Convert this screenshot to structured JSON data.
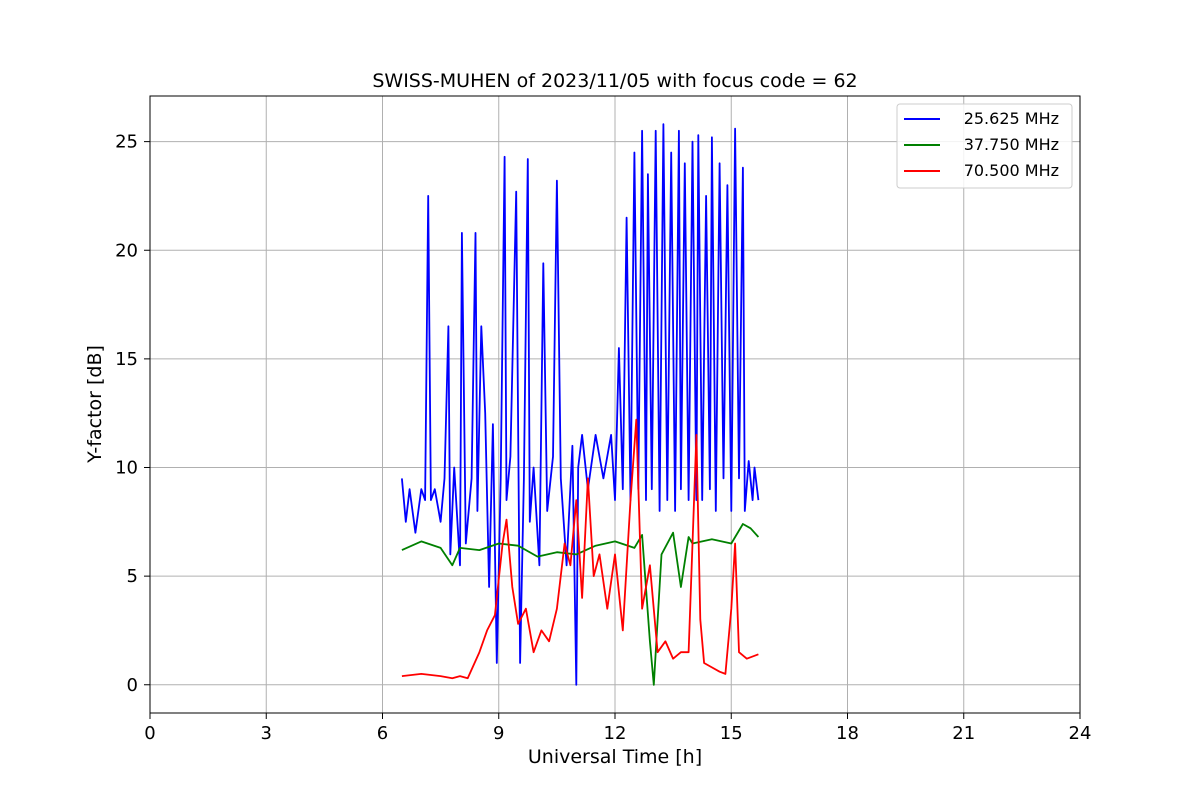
{
  "chart_data": {
    "type": "line",
    "title": "SWISS-MUHEN of 2023/11/05 with focus code = 62",
    "xlabel": "Universal Time [h]",
    "ylabel": "Y-factor [dB]",
    "xlim": [
      0,
      24
    ],
    "ylim": [
      -1.3,
      27.1
    ],
    "xticks": [
      0,
      3,
      6,
      9,
      12,
      15,
      18,
      21,
      24
    ],
    "yticks": [
      0,
      5,
      10,
      15,
      20,
      25
    ],
    "grid": true,
    "legend_position": "top-right",
    "series": [
      {
        "name": "25.625 MHz",
        "color": "#0000ff",
        "x": [
          6.5,
          6.6,
          6.7,
          6.85,
          7.0,
          7.1,
          7.18,
          7.25,
          7.35,
          7.5,
          7.6,
          7.7,
          7.75,
          7.85,
          8.0,
          8.05,
          8.15,
          8.3,
          8.4,
          8.45,
          8.55,
          8.65,
          8.75,
          8.85,
          8.95,
          9.05,
          9.15,
          9.2,
          9.3,
          9.45,
          9.55,
          9.65,
          9.75,
          9.8,
          9.9,
          10.05,
          10.15,
          10.25,
          10.4,
          10.5,
          10.6,
          10.75,
          10.9,
          11.0,
          11.05,
          11.15,
          11.3,
          11.5,
          11.7,
          11.9,
          12.0,
          12.1,
          12.2,
          12.3,
          12.4,
          12.5,
          12.6,
          12.7,
          12.8,
          12.85,
          12.95,
          13.05,
          13.15,
          13.25,
          13.35,
          13.45,
          13.55,
          13.65,
          13.7,
          13.8,
          13.9,
          14.0,
          14.1,
          14.15,
          14.25,
          14.35,
          14.45,
          14.5,
          14.6,
          14.7,
          14.8,
          14.9,
          15.0,
          15.1,
          15.2,
          15.3,
          15.35,
          15.45,
          15.55,
          15.6,
          15.7
        ],
        "values": [
          9.5,
          7.5,
          9.0,
          7.0,
          9.0,
          8.5,
          22.5,
          8.5,
          9.0,
          7.5,
          9.5,
          16.5,
          6.0,
          10.0,
          5.5,
          20.8,
          6.5,
          9.5,
          20.8,
          8.0,
          16.5,
          12.5,
          4.5,
          12.0,
          1.0,
          9.5,
          24.3,
          8.5,
          10.5,
          22.7,
          1.0,
          9.5,
          24.2,
          7.5,
          10.0,
          5.5,
          19.4,
          8.0,
          10.5,
          23.2,
          9.5,
          5.5,
          11.0,
          0.0,
          10.0,
          11.5,
          9.0,
          11.5,
          9.5,
          11.5,
          8.5,
          15.5,
          9.0,
          21.5,
          8.5,
          24.5,
          9.0,
          25.5,
          8.5,
          23.5,
          9.0,
          25.5,
          8.0,
          25.8,
          8.5,
          24.5,
          8.0,
          25.5,
          9.0,
          24.0,
          8.5,
          25.0,
          8.5,
          25.3,
          8.5,
          22.5,
          9.0,
          25.2,
          8.0,
          24.0,
          9.5,
          23.0,
          8.0,
          25.6,
          9.5,
          23.8,
          8.0,
          10.3,
          8.5,
          10.0,
          8.5
        ]
      },
      {
        "name": "37.750 MHz",
        "color": "#008000",
        "x": [
          6.5,
          7.0,
          7.5,
          7.8,
          8.0,
          8.5,
          9.0,
          9.5,
          10.0,
          10.5,
          11.0,
          11.5,
          12.0,
          12.5,
          12.7,
          12.9,
          13.0,
          13.2,
          13.5,
          13.7,
          13.9,
          14.0,
          14.5,
          15.0,
          15.3,
          15.5,
          15.7
        ],
        "values": [
          6.2,
          6.6,
          6.3,
          5.5,
          6.3,
          6.2,
          6.5,
          6.4,
          5.9,
          6.1,
          6.0,
          6.4,
          6.6,
          6.3,
          6.9,
          2.0,
          0.0,
          6.0,
          7.0,
          4.5,
          6.8,
          6.5,
          6.7,
          6.5,
          7.4,
          7.2,
          6.8
        ]
      },
      {
        "name": "70.500 MHz",
        "color": "#ff0000",
        "x": [
          6.5,
          7.0,
          7.5,
          7.8,
          8.0,
          8.2,
          8.5,
          8.7,
          8.9,
          9.1,
          9.2,
          9.35,
          9.5,
          9.7,
          9.9,
          10.1,
          10.3,
          10.5,
          10.7,
          10.85,
          11.0,
          11.15,
          11.3,
          11.45,
          11.6,
          11.8,
          12.0,
          12.2,
          12.4,
          12.55,
          12.7,
          12.9,
          13.1,
          13.3,
          13.5,
          13.7,
          13.9,
          14.0,
          14.1,
          14.2,
          14.3,
          14.5,
          14.7,
          14.85,
          15.0,
          15.1,
          15.2,
          15.4,
          15.7
        ],
        "values": [
          0.4,
          0.5,
          0.4,
          0.3,
          0.4,
          0.3,
          1.5,
          2.5,
          3.2,
          6.5,
          7.6,
          4.5,
          2.8,
          3.5,
          1.5,
          2.5,
          2.0,
          3.5,
          6.5,
          5.5,
          8.5,
          4.0,
          9.5,
          5.0,
          6.0,
          3.5,
          6.0,
          2.5,
          8.5,
          12.2,
          3.5,
          5.5,
          1.5,
          2.0,
          1.2,
          1.5,
          1.5,
          6.5,
          11.5,
          3.0,
          1.0,
          0.8,
          0.6,
          0.5,
          3.5,
          6.5,
          1.5,
          1.2,
          1.4
        ]
      }
    ]
  }
}
